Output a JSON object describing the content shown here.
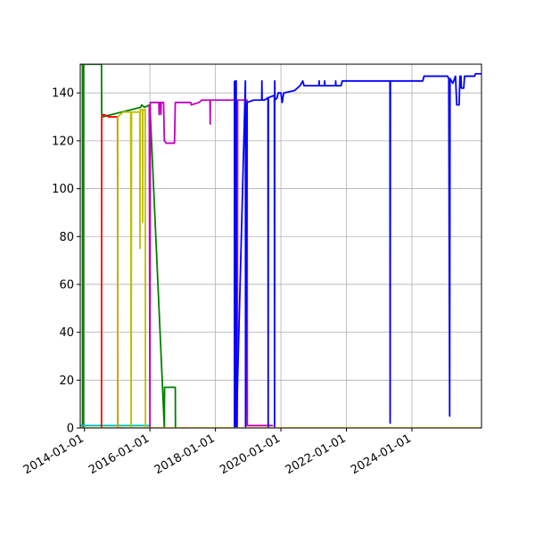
{
  "chart_data": {
    "type": "line",
    "title": "",
    "xlabel": "",
    "ylabel": "",
    "xlim": [
      "2013-11-15",
      "2026-02-15"
    ],
    "ylim": [
      0,
      152
    ],
    "grid": true,
    "legend": "none",
    "x_ticks": [
      "2014-01-01",
      "2016-01-01",
      "2018-01-01",
      "2020-01-01",
      "2022-01-01",
      "2024-01-01"
    ],
    "y_ticks": [
      0,
      20,
      40,
      60,
      80,
      100,
      120,
      140
    ],
    "series": [
      {
        "color": "#008000",
        "points": [
          [
            "2013-11-15",
            152
          ],
          [
            "2013-12-10",
            152
          ],
          [
            "2013-12-11",
            0
          ],
          [
            "2013-12-20",
            0
          ],
          [
            "2013-12-21",
            152
          ],
          [
            "2014-01-05",
            152
          ],
          [
            "2014-07-10",
            152
          ],
          [
            "2014-07-12",
            131
          ],
          [
            "2014-07-20",
            130
          ],
          [
            "2015-09-20",
            134
          ],
          [
            "2015-10-01",
            135
          ],
          [
            "2015-11-01",
            134
          ],
          [
            "2016-01-01",
            135
          ],
          [
            "2016-06-10",
            0
          ],
          [
            "2016-06-12",
            17
          ],
          [
            "2016-10-10",
            17
          ],
          [
            "2016-10-12",
            0
          ]
        ]
      },
      {
        "color": "#00bfbf",
        "points": [
          [
            "2013-11-15",
            1
          ],
          [
            "2016-01-01",
            1
          ]
        ]
      },
      {
        "color": "#ff0000",
        "points": [
          [
            "2014-07-10",
            0
          ],
          [
            "2014-07-12",
            130
          ],
          [
            "2014-08-01",
            131
          ],
          [
            "2014-10-01",
            130
          ],
          [
            "2015-01-05",
            130
          ],
          [
            "2015-01-08",
            0
          ],
          [
            "2015-03-01",
            0
          ]
        ]
      },
      {
        "color": "#bfbf00",
        "points": [
          [
            "2015-01-05",
            0
          ],
          [
            "2015-01-08",
            130
          ],
          [
            "2015-03-10",
            132
          ],
          [
            "2015-06-01",
            132
          ],
          [
            "2015-06-05",
            0
          ],
          [
            "2015-06-10",
            132
          ],
          [
            "2015-09-10",
            132
          ],
          [
            "2015-09-12",
            75
          ],
          [
            "2015-09-15",
            133
          ],
          [
            "2015-10-10",
            133
          ],
          [
            "2015-10-12",
            86
          ],
          [
            "2015-10-15",
            133
          ],
          [
            "2015-11-10",
            133
          ],
          [
            "2015-11-12",
            0
          ],
          [
            "2016-01-01",
            0
          ]
        ]
      },
      {
        "color": "#bf00bf",
        "points": [
          [
            "2015-12-25",
            135
          ],
          [
            "2016-01-01",
            0
          ],
          [
            "2016-01-05",
            136
          ],
          [
            "2016-04-10",
            136
          ],
          [
            "2016-04-12",
            131
          ],
          [
            "2016-04-15",
            136
          ],
          [
            "2016-05-01",
            136
          ],
          [
            "2016-05-03",
            131
          ],
          [
            "2016-05-05",
            136
          ],
          [
            "2016-06-01",
            136
          ],
          [
            "2016-06-10",
            120
          ],
          [
            "2016-07-01",
            119
          ],
          [
            "2016-10-01",
            119
          ],
          [
            "2016-10-10",
            136
          ],
          [
            "2017-04-01",
            136
          ],
          [
            "2017-04-05",
            135
          ],
          [
            "2017-07-01",
            136
          ],
          [
            "2017-08-01",
            137
          ],
          [
            "2017-11-01",
            137
          ],
          [
            "2017-11-03",
            127
          ],
          [
            "2017-11-05",
            137
          ],
          [
            "2018-08-01",
            137
          ],
          [
            "2018-08-02",
            0
          ],
          [
            "2018-08-10",
            137
          ],
          [
            "2018-08-12",
            0
          ],
          [
            "2018-08-20",
            137
          ],
          [
            "2018-08-22",
            0
          ],
          [
            "2018-08-28",
            137
          ],
          [
            "2018-09-01",
            137
          ],
          [
            "2018-09-02",
            0
          ],
          [
            "2018-09-05",
            137
          ],
          [
            "2018-12-20",
            137
          ],
          [
            "2018-12-22",
            1
          ],
          [
            "2019-10-01",
            1
          ],
          [
            "2019-10-05",
            1
          ]
        ]
      },
      {
        "color": "#0000ff",
        "points": [
          [
            "2018-08-01",
            145
          ],
          [
            "2018-08-02",
            0
          ],
          [
            "2018-08-10",
            145
          ],
          [
            "2018-08-12",
            0
          ],
          [
            "2018-08-20",
            145
          ],
          [
            "2018-08-22",
            0
          ],
          [
            "2018-12-01",
            145
          ],
          [
            "2018-12-03",
            0
          ],
          [
            "2018-12-20",
            136
          ],
          [
            "2019-03-01",
            137
          ],
          [
            "2019-06-01",
            137
          ],
          [
            "2019-06-03",
            145
          ],
          [
            "2019-06-05",
            137
          ],
          [
            "2019-07-01",
            137
          ],
          [
            "2019-08-10",
            138
          ],
          [
            "2019-08-12",
            0
          ],
          [
            "2019-08-14",
            138
          ],
          [
            "2019-10-20",
            139
          ],
          [
            "2019-10-22",
            0
          ],
          [
            "2019-10-24",
            145
          ],
          [
            "2019-10-26",
            137
          ],
          [
            "2019-11-20",
            138
          ],
          [
            "2019-12-01",
            140
          ],
          [
            "2020-01-01",
            140
          ],
          [
            "2020-01-15",
            136
          ],
          [
            "2020-02-01",
            140
          ],
          [
            "2020-06-01",
            141
          ],
          [
            "2020-08-01",
            143
          ],
          [
            "2020-09-01",
            145
          ],
          [
            "2020-09-15",
            143
          ],
          [
            "2021-03-01",
            143
          ],
          [
            "2021-03-03",
            145
          ],
          [
            "2021-03-05",
            143
          ],
          [
            "2021-05-01",
            143
          ],
          [
            "2021-05-03",
            145
          ],
          [
            "2021-05-05",
            143
          ],
          [
            "2021-09-01",
            143
          ],
          [
            "2021-09-03",
            145
          ],
          [
            "2021-09-05",
            143
          ],
          [
            "2021-11-01",
            143
          ],
          [
            "2021-11-15",
            145
          ],
          [
            "2023-05-01",
            145
          ],
          [
            "2023-05-03",
            2
          ],
          [
            "2023-05-06",
            145
          ],
          [
            "2024-05-01",
            145
          ],
          [
            "2024-05-15",
            147
          ],
          [
            "2025-02-01",
            147
          ],
          [
            "2025-02-15",
            146
          ],
          [
            "2025-02-25",
            5
          ],
          [
            "2025-03-01",
            146
          ],
          [
            "2025-04-01",
            144
          ],
          [
            "2025-05-01",
            147
          ],
          [
            "2025-05-15",
            135
          ],
          [
            "2025-06-10",
            135
          ],
          [
            "2025-06-20",
            147
          ],
          [
            "2025-07-01",
            147
          ],
          [
            "2025-07-05",
            142
          ],
          [
            "2025-08-01",
            142
          ],
          [
            "2025-08-10",
            147
          ],
          [
            "2025-12-01",
            147
          ],
          [
            "2025-12-10",
            148
          ],
          [
            "2026-02-15",
            148
          ]
        ]
      },
      {
        "color": "#ffbf00",
        "points": [
          [
            "2013-11-15",
            0
          ],
          [
            "2026-02-15",
            0
          ]
        ]
      }
    ]
  }
}
